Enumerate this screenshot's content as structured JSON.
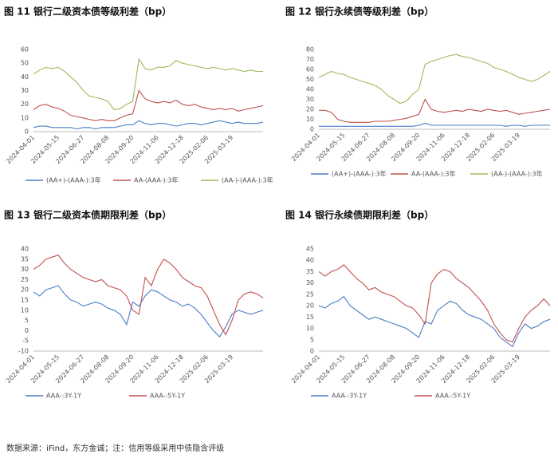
{
  "chart_data": [
    {
      "type": "line",
      "title": "图 11 银行二级资本债等级利差（bp）",
      "categories": [
        "2024-04-01",
        null,
        null,
        null,
        "2024-05-15",
        null,
        null,
        null,
        "2024-06-27",
        null,
        null,
        null,
        "2024-08-08",
        null,
        null,
        null,
        "2024-09-20",
        null,
        null,
        null,
        "2024-11-06",
        null,
        null,
        null,
        "2024-12-18",
        null,
        null,
        null,
        "2025-02-06",
        null,
        null,
        null,
        "2025-03-19",
        null,
        null,
        null,
        null,
        null
      ],
      "ylim": [
        0,
        60
      ],
      "yticks": [
        0,
        10,
        20,
        30,
        40,
        50,
        60
      ],
      "grid": false,
      "series": [
        {
          "name": "(AA+)-(AAA-):3年",
          "color": "#4a7cc4",
          "values": [
            3,
            4,
            4,
            3,
            3,
            3,
            3,
            2,
            3,
            3,
            2,
            3,
            3,
            3,
            4,
            5,
            5,
            8,
            6,
            5,
            6,
            6,
            5,
            4,
            5,
            6,
            6,
            5,
            6,
            7,
            8,
            7,
            6,
            7,
            6,
            6,
            6,
            7
          ]
        },
        {
          "name": "AA-(AAA-):3年",
          "color": "#c0504d",
          "values": [
            16,
            19,
            20,
            18,
            17,
            15,
            12,
            11,
            10,
            9,
            8,
            9,
            8,
            8,
            10,
            12,
            13,
            30,
            24,
            22,
            21,
            22,
            21,
            23,
            20,
            19,
            20,
            18,
            17,
            16,
            17,
            16,
            17,
            15,
            16,
            17,
            18,
            19
          ]
        },
        {
          "name": "(AA-)-(AAA-):3年",
          "color": "#9bbb59",
          "values": [
            42,
            45,
            47,
            46,
            47,
            44,
            40,
            36,
            30,
            26,
            25,
            24,
            22,
            16,
            17,
            20,
            22,
            53,
            46,
            45,
            47,
            47,
            48,
            52,
            50,
            49,
            48,
            47,
            46,
            47,
            46,
            45,
            46,
            45,
            44,
            45,
            44,
            44
          ]
        }
      ]
    },
    {
      "type": "line",
      "title": "图 12 银行永续债等级利差（bp）",
      "categories": [
        "2024-04-01",
        null,
        null,
        null,
        "2024-05-15",
        null,
        null,
        null,
        "2024-06-27",
        null,
        null,
        null,
        "2024-08-08",
        null,
        null,
        null,
        "2024-09-20",
        null,
        null,
        null,
        "2024-11-06",
        null,
        null,
        null,
        "2024-12-18",
        null,
        null,
        null,
        "2025-02-06",
        null,
        null,
        null,
        "2025-03-19",
        null,
        null,
        null,
        null,
        null
      ],
      "ylim": [
        0,
        80
      ],
      "yticks": [
        0,
        10,
        20,
        30,
        40,
        50,
        60,
        70,
        80
      ],
      "grid": false,
      "series": [
        {
          "name": "(AA+)-(AAA-):3年",
          "color": "#4a7cc4",
          "values": [
            3,
            3,
            3,
            3,
            3,
            3,
            3,
            3,
            3,
            3,
            3,
            3,
            3,
            3,
            3,
            3,
            4,
            6,
            4,
            4,
            4,
            4,
            4,
            4,
            4,
            4,
            4,
            4,
            4,
            4,
            3,
            4,
            4,
            3,
            4,
            4,
            4,
            4
          ]
        },
        {
          "name": "AA-(AAA-):3年",
          "color": "#c0504d",
          "values": [
            19,
            19,
            17,
            10,
            8,
            7,
            7,
            7,
            7,
            8,
            8,
            8,
            9,
            10,
            11,
            13,
            15,
            30,
            20,
            18,
            17,
            18,
            19,
            18,
            20,
            19,
            18,
            20,
            19,
            18,
            19,
            17,
            15,
            16,
            17,
            18,
            19,
            20
          ]
        },
        {
          "name": "(AA-)-(AAA-):3年",
          "color": "#9bbb59",
          "values": [
            52,
            55,
            58,
            56,
            55,
            52,
            50,
            48,
            46,
            44,
            40,
            34,
            30,
            26,
            28,
            35,
            40,
            65,
            68,
            70,
            72,
            74,
            75,
            73,
            72,
            70,
            68,
            66,
            62,
            60,
            58,
            55,
            52,
            50,
            48,
            50,
            54,
            58
          ]
        }
      ]
    },
    {
      "type": "line",
      "title": "图 13 银行二级资本债期限利差（bp）",
      "categories": [
        "2024-04-01",
        null,
        null,
        null,
        "2024-05-15",
        null,
        null,
        null,
        "2024-06-27",
        null,
        null,
        null,
        "2024-08-08",
        null,
        null,
        null,
        "2024-09-20",
        null,
        null,
        null,
        "2024-11-06",
        null,
        null,
        null,
        "2024-12-18",
        null,
        null,
        null,
        "2025-02-06",
        null,
        null,
        null,
        "2025-03-19",
        null,
        null,
        null,
        null,
        null
      ],
      "ylim": [
        -10,
        40
      ],
      "yticks": [
        -10,
        -5,
        0,
        5,
        10,
        15,
        20,
        25,
        30,
        35,
        40
      ],
      "grid": false,
      "series": [
        {
          "name": "AAA-:3Y-1Y",
          "color": "#4a7cc4",
          "values": [
            19,
            17,
            20,
            21,
            22,
            18,
            15,
            14,
            12,
            13,
            14,
            13,
            11,
            10,
            8,
            3,
            14,
            12,
            17,
            20,
            19,
            17,
            15,
            14,
            12,
            13,
            11,
            8,
            4,
            0,
            -3,
            2,
            8,
            10,
            9,
            8,
            9,
            10
          ]
        },
        {
          "name": "AAA-:5Y-1Y",
          "color": "#c0504d",
          "values": [
            30,
            32,
            35,
            36,
            37,
            33,
            30,
            28,
            26,
            25,
            24,
            25,
            22,
            21,
            20,
            17,
            10,
            8,
            26,
            22,
            30,
            35,
            33,
            30,
            26,
            24,
            22,
            21,
            17,
            10,
            3,
            -2,
            5,
            15,
            18,
            19,
            18,
            16
          ]
        }
      ]
    },
    {
      "type": "line",
      "title": "图 14 银行永续债期限利差（bp）",
      "categories": [
        "2024-04-01",
        null,
        null,
        null,
        "2024-05-15",
        null,
        null,
        null,
        "2024-06-27",
        null,
        null,
        null,
        "2024-08-08",
        null,
        null,
        null,
        "2024-09-20",
        null,
        null,
        null,
        "2024-11-06",
        null,
        null,
        null,
        "2024-12-18",
        null,
        null,
        null,
        "2025-02-06",
        null,
        null,
        null,
        "2025-03-19",
        null,
        null,
        null,
        null,
        null
      ],
      "ylim": [
        0,
        45
      ],
      "yticks": [
        0,
        5,
        10,
        15,
        20,
        25,
        30,
        35,
        40,
        45
      ],
      "grid": false,
      "series": [
        {
          "name": "AAA-:3Y-1Y",
          "color": "#4a7cc4",
          "values": [
            20,
            19,
            21,
            22,
            24,
            20,
            18,
            16,
            14,
            15,
            14,
            13,
            12,
            11,
            10,
            8,
            6,
            13,
            12,
            18,
            20,
            22,
            21,
            18,
            16,
            15,
            14,
            12,
            10,
            6,
            4,
            2,
            8,
            12,
            10,
            11,
            13,
            14
          ]
        },
        {
          "name": "AAA-:5Y-1Y",
          "color": "#c0504d",
          "values": [
            35,
            33,
            35,
            36,
            38,
            35,
            32,
            30,
            27,
            28,
            26,
            25,
            24,
            22,
            20,
            19,
            16,
            12,
            30,
            34,
            36,
            35,
            32,
            30,
            28,
            25,
            22,
            18,
            12,
            8,
            5,
            4,
            10,
            15,
            18,
            20,
            23,
            20
          ]
        }
      ]
    }
  ],
  "source": "数据来源：iFind，东方金诚；注：信用等级采用中债隐含评级"
}
